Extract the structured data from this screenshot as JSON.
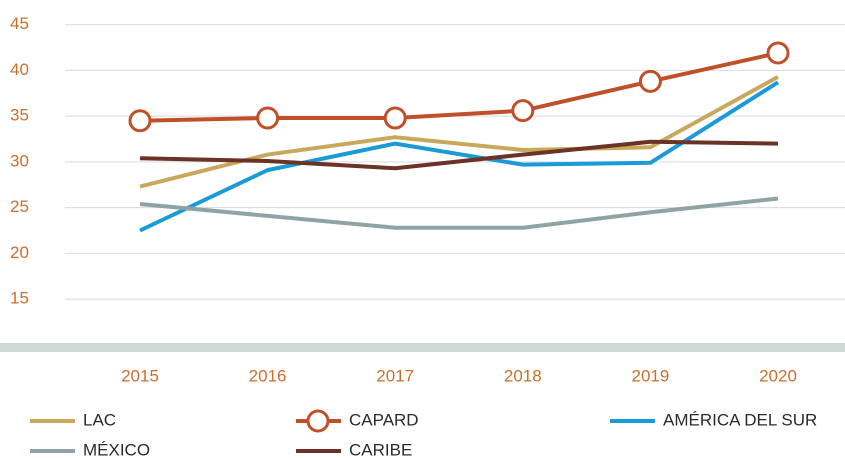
{
  "chart_data": {
    "type": "line",
    "categories": [
      "2015",
      "2016",
      "2017",
      "2018",
      "2019",
      "2020"
    ],
    "series": [
      {
        "name": "LAC",
        "color": "#c9a85c",
        "values": [
          27.3,
          30.8,
          32.7,
          31.3,
          31.6,
          39.3
        ]
      },
      {
        "name": "CAPARD",
        "color": "#c0502a",
        "marker": "circle",
        "values": [
          34.5,
          34.8,
          34.8,
          35.6,
          38.8,
          41.9
        ]
      },
      {
        "name": "AMÉRICA DEL SUR",
        "color": "#1a9ad6",
        "values": [
          22.5,
          29.1,
          32.0,
          29.7,
          29.9,
          38.7
        ]
      },
      {
        "name": "MÉXICO",
        "color": "#8fa3a6",
        "values": [
          25.4,
          24.1,
          22.8,
          22.8,
          24.5,
          26.0
        ]
      },
      {
        "name": "CARIBE",
        "color": "#6b3226",
        "values": [
          30.4,
          30.1,
          29.3,
          30.8,
          32.2,
          32.0
        ]
      }
    ],
    "ylim": [
      10.2,
      47.7
    ],
    "yticks": [
      15,
      20,
      25,
      30,
      35,
      40,
      45
    ],
    "grid": true,
    "legend": "bottom"
  }
}
